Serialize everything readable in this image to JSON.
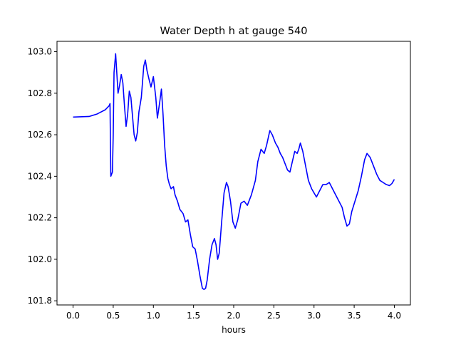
{
  "chart_data": {
    "type": "line",
    "title": "Water Depth h at gauge 540",
    "xlabel": "hours",
    "ylabel": "",
    "xlim": [
      -0.2,
      4.2
    ],
    "ylim": [
      101.78,
      103.05
    ],
    "xticks": [
      0.0,
      0.5,
      1.0,
      1.5,
      2.0,
      2.5,
      3.0,
      3.5,
      4.0
    ],
    "xtick_labels": [
      "0.0",
      "0.5",
      "1.0",
      "1.5",
      "2.0",
      "2.5",
      "3.0",
      "3.5",
      "4.0"
    ],
    "yticks": [
      101.8,
      102.0,
      102.2,
      102.4,
      102.6,
      102.8,
      103.0
    ],
    "ytick_labels": [
      "101.8",
      "102.0",
      "102.2",
      "102.4",
      "102.6",
      "102.8",
      "103.0"
    ],
    "grid": false,
    "series": [
      {
        "color": "#0000ff",
        "x": [
          0.0,
          0.2,
          0.3,
          0.4,
          0.45,
          0.46,
          0.47,
          0.49,
          0.5,
          0.51,
          0.53,
          0.56,
          0.58,
          0.6,
          0.62,
          0.64,
          0.66,
          0.68,
          0.7,
          0.72,
          0.74,
          0.76,
          0.78,
          0.8,
          0.82,
          0.85,
          0.88,
          0.9,
          0.92,
          0.95,
          0.97,
          1.0,
          1.03,
          1.05,
          1.08,
          1.1,
          1.12,
          1.14,
          1.16,
          1.18,
          1.2,
          1.22,
          1.25,
          1.27,
          1.3,
          1.33,
          1.37,
          1.4,
          1.43,
          1.46,
          1.49,
          1.52,
          1.55,
          1.58,
          1.61,
          1.63,
          1.65,
          1.67,
          1.7,
          1.73,
          1.76,
          1.78,
          1.8,
          1.82,
          1.85,
          1.88,
          1.91,
          1.93,
          1.96,
          1.99,
          2.02,
          2.05,
          2.09,
          2.13,
          2.17,
          2.22,
          2.27,
          2.3,
          2.34,
          2.38,
          2.41,
          2.45,
          2.48,
          2.52,
          2.55,
          2.58,
          2.61,
          2.64,
          2.67,
          2.7,
          2.73,
          2.76,
          2.79,
          2.81,
          2.83,
          2.86,
          2.9,
          2.93,
          2.97,
          3.0,
          3.03,
          3.07,
          3.11,
          3.15,
          3.19,
          3.23,
          3.27,
          3.31,
          3.35,
          3.38,
          3.41,
          3.44,
          3.47,
          3.51,
          3.55,
          3.59,
          3.63,
          3.66,
          3.7,
          3.74,
          3.78,
          3.82,
          3.86,
          3.9,
          3.94,
          3.97,
          4.0
        ],
        "y": [
          102.685,
          102.688,
          102.7,
          102.72,
          102.74,
          102.75,
          102.4,
          102.42,
          102.6,
          102.9,
          102.99,
          102.8,
          102.84,
          102.89,
          102.85,
          102.74,
          102.64,
          102.7,
          102.81,
          102.78,
          102.69,
          102.6,
          102.57,
          102.61,
          102.71,
          102.78,
          102.93,
          102.96,
          102.91,
          102.86,
          102.83,
          102.88,
          102.78,
          102.68,
          102.76,
          102.82,
          102.7,
          102.55,
          102.45,
          102.39,
          102.36,
          102.34,
          102.35,
          102.31,
          102.28,
          102.24,
          102.22,
          102.18,
          102.19,
          102.12,
          102.06,
          102.05,
          101.99,
          101.92,
          101.86,
          101.855,
          101.86,
          101.9,
          102.0,
          102.07,
          102.1,
          102.07,
          102.0,
          102.03,
          102.18,
          102.32,
          102.37,
          102.35,
          102.28,
          102.18,
          102.15,
          102.19,
          102.27,
          102.28,
          102.26,
          102.31,
          102.38,
          102.47,
          102.53,
          102.51,
          102.55,
          102.62,
          102.6,
          102.56,
          102.54,
          102.51,
          102.49,
          102.46,
          102.43,
          102.42,
          102.47,
          102.52,
          102.51,
          102.53,
          102.56,
          102.52,
          102.44,
          102.38,
          102.34,
          102.32,
          102.3,
          102.33,
          102.36,
          102.36,
          102.37,
          102.34,
          102.31,
          102.28,
          102.25,
          102.2,
          102.16,
          102.17,
          102.23,
          102.28,
          102.33,
          102.4,
          102.48,
          102.51,
          102.49,
          102.45,
          102.41,
          102.38,
          102.37,
          102.36,
          102.355,
          102.365,
          102.385
        ]
      }
    ]
  }
}
